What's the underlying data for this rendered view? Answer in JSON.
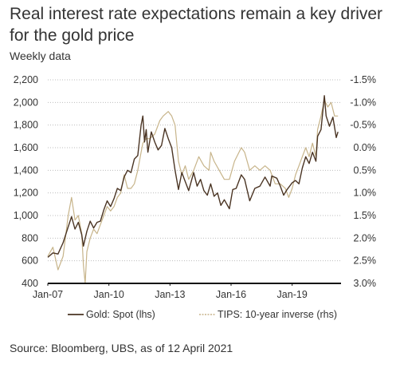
{
  "title": "Real interest rate expectations remain a key driver for the gold price",
  "subtitle": "Weekly data",
  "source": "Source: Bloomberg, UBS, as of 12 April 2021",
  "colors": {
    "gold": "#4a3423",
    "tips": "#c7b48a",
    "grid": "#bdbdbd",
    "axis": "#111111"
  },
  "chart_data": {
    "type": "line",
    "x_ticks": [
      "Jan-07",
      "Jan-10",
      "Jan-13",
      "Jan-16",
      "Jan-19"
    ],
    "y_left_ticks": [
      "2,200",
      "2,000",
      "1,800",
      "1,600",
      "1,400",
      "1,200",
      "1,000",
      "800",
      "600",
      "400"
    ],
    "y_right_ticks": [
      "-1.5%",
      "-1.0%",
      "-0.5%",
      "0.0%",
      "0.5%",
      "1.0%",
      "1.5%",
      "2.0%",
      "2.5%",
      "3.0%"
    ],
    "ylim_left": [
      400,
      2200
    ],
    "ylim_right": [
      3.0,
      -1.5
    ],
    "grid": true,
    "legend_position": "bottom",
    "series": [
      {
        "name": "Gold: Spot (lhs)",
        "axis": "left",
        "points": [
          [
            "2007-01",
            630
          ],
          [
            "2007-04",
            670
          ],
          [
            "2007-07",
            660
          ],
          [
            "2007-10",
            760
          ],
          [
            "2008-01",
            900
          ],
          [
            "2008-03",
            990
          ],
          [
            "2008-05",
            880
          ],
          [
            "2008-07",
            940
          ],
          [
            "2008-09",
            830
          ],
          [
            "2008-10",
            730
          ],
          [
            "2008-12",
            860
          ],
          [
            "2009-02",
            950
          ],
          [
            "2009-04",
            890
          ],
          [
            "2009-06",
            940
          ],
          [
            "2009-08",
            950
          ],
          [
            "2009-10",
            1050
          ],
          [
            "2009-12",
            1130
          ],
          [
            "2010-02",
            1080
          ],
          [
            "2010-04",
            1150
          ],
          [
            "2010-06",
            1240
          ],
          [
            "2010-08",
            1220
          ],
          [
            "2010-10",
            1340
          ],
          [
            "2010-12",
            1400
          ],
          [
            "2011-02",
            1380
          ],
          [
            "2011-04",
            1500
          ],
          [
            "2011-06",
            1530
          ],
          [
            "2011-08",
            1800
          ],
          [
            "2011-09",
            1880
          ],
          [
            "2011-10",
            1650
          ],
          [
            "2011-11",
            1760
          ],
          [
            "2011-12",
            1560
          ],
          [
            "2012-02",
            1740
          ],
          [
            "2012-04",
            1650
          ],
          [
            "2012-06",
            1580
          ],
          [
            "2012-08",
            1620
          ],
          [
            "2012-10",
            1770
          ],
          [
            "2012-12",
            1680
          ],
          [
            "2013-02",
            1600
          ],
          [
            "2013-04",
            1400
          ],
          [
            "2013-06",
            1230
          ],
          [
            "2013-08",
            1380
          ],
          [
            "2013-10",
            1300
          ],
          [
            "2013-12",
            1220
          ],
          [
            "2014-03",
            1380
          ],
          [
            "2014-05",
            1260
          ],
          [
            "2014-07",
            1320
          ],
          [
            "2014-09",
            1220
          ],
          [
            "2014-11",
            1180
          ],
          [
            "2015-01",
            1280
          ],
          [
            "2015-03",
            1170
          ],
          [
            "2015-05",
            1200
          ],
          [
            "2015-07",
            1090
          ],
          [
            "2015-09",
            1140
          ],
          [
            "2015-12",
            1060
          ],
          [
            "2016-02",
            1230
          ],
          [
            "2016-04",
            1240
          ],
          [
            "2016-07",
            1360
          ],
          [
            "2016-09",
            1320
          ],
          [
            "2016-12",
            1130
          ],
          [
            "2017-03",
            1240
          ],
          [
            "2017-06",
            1260
          ],
          [
            "2017-09",
            1340
          ],
          [
            "2017-12",
            1260
          ],
          [
            "2018-01",
            1350
          ],
          [
            "2018-04",
            1330
          ],
          [
            "2018-06",
            1260
          ],
          [
            "2018-08",
            1180
          ],
          [
            "2018-10",
            1230
          ],
          [
            "2019-01",
            1290
          ],
          [
            "2019-03",
            1310
          ],
          [
            "2019-05",
            1280
          ],
          [
            "2019-07",
            1420
          ],
          [
            "2019-09",
            1520
          ],
          [
            "2019-11",
            1460
          ],
          [
            "2020-01",
            1560
          ],
          [
            "2020-03",
            1480
          ],
          [
            "2020-04",
            1700
          ],
          [
            "2020-06",
            1760
          ],
          [
            "2020-08",
            2060
          ],
          [
            "2020-09",
            1880
          ],
          [
            "2020-11",
            1790
          ],
          [
            "2021-01",
            1870
          ],
          [
            "2021-03",
            1690
          ],
          [
            "2021-04",
            1740
          ]
        ]
      },
      {
        "name": "TIPS: 10-year inverse (rhs)",
        "axis": "right",
        "points": [
          [
            "2007-01",
            2.4
          ],
          [
            "2007-04",
            2.2
          ],
          [
            "2007-07",
            2.7
          ],
          [
            "2007-10",
            2.4
          ],
          [
            "2008-01",
            1.5
          ],
          [
            "2008-03",
            1.1
          ],
          [
            "2008-05",
            1.6
          ],
          [
            "2008-07",
            1.5
          ],
          [
            "2008-09",
            1.9
          ],
          [
            "2008-10",
            2.6
          ],
          [
            "2008-11",
            3.0
          ],
          [
            "2008-12",
            2.3
          ],
          [
            "2009-02",
            2.0
          ],
          [
            "2009-04",
            1.8
          ],
          [
            "2009-06",
            1.9
          ],
          [
            "2009-08",
            1.7
          ],
          [
            "2009-10",
            1.5
          ],
          [
            "2009-12",
            1.3
          ],
          [
            "2010-02",
            1.4
          ],
          [
            "2010-04",
            1.3
          ],
          [
            "2010-06",
            1.1
          ],
          [
            "2010-08",
            1.0
          ],
          [
            "2010-10",
            0.6
          ],
          [
            "2010-12",
            0.9
          ],
          [
            "2011-02",
            0.9
          ],
          [
            "2011-04",
            0.8
          ],
          [
            "2011-06",
            0.5
          ],
          [
            "2011-08",
            0.1
          ],
          [
            "2011-09",
            -0.1
          ],
          [
            "2011-11",
            -0.2
          ],
          [
            "2012-01",
            -0.2
          ],
          [
            "2012-04",
            -0.3
          ],
          [
            "2012-07",
            -0.6
          ],
          [
            "2012-09",
            -0.7
          ],
          [
            "2012-12",
            -0.8
          ],
          [
            "2013-02",
            -0.7
          ],
          [
            "2013-04",
            -0.5
          ],
          [
            "2013-06",
            0.3
          ],
          [
            "2013-08",
            0.6
          ],
          [
            "2013-10",
            0.4
          ],
          [
            "2013-12",
            0.7
          ],
          [
            "2014-03",
            0.5
          ],
          [
            "2014-06",
            0.2
          ],
          [
            "2014-09",
            0.4
          ],
          [
            "2014-12",
            0.5
          ],
          [
            "2015-01",
            0.1
          ],
          [
            "2015-03",
            0.3
          ],
          [
            "2015-06",
            0.5
          ],
          [
            "2015-09",
            0.7
          ],
          [
            "2015-12",
            0.7
          ],
          [
            "2016-03",
            0.3
          ],
          [
            "2016-07",
            0.0
          ],
          [
            "2016-09",
            0.1
          ],
          [
            "2016-12",
            0.5
          ],
          [
            "2017-03",
            0.4
          ],
          [
            "2017-06",
            0.5
          ],
          [
            "2017-09",
            0.4
          ],
          [
            "2017-12",
            0.5
          ],
          [
            "2018-03",
            0.8
          ],
          [
            "2018-06",
            0.8
          ],
          [
            "2018-09",
            0.9
          ],
          [
            "2018-11",
            1.1
          ],
          [
            "2019-01",
            0.9
          ],
          [
            "2019-03",
            0.6
          ],
          [
            "2019-05",
            0.4
          ],
          [
            "2019-07",
            0.2
          ],
          [
            "2019-09",
            0.0
          ],
          [
            "2019-11",
            0.2
          ],
          [
            "2020-01",
            -0.1
          ],
          [
            "2020-03",
            0.2
          ],
          [
            "2020-04",
            -0.4
          ],
          [
            "2020-06",
            -0.7
          ],
          [
            "2020-08",
            -1.05
          ],
          [
            "2020-10",
            -0.9
          ],
          [
            "2020-12",
            -1.0
          ],
          [
            "2021-02",
            -0.7
          ],
          [
            "2021-04",
            -0.7
          ]
        ]
      }
    ]
  }
}
